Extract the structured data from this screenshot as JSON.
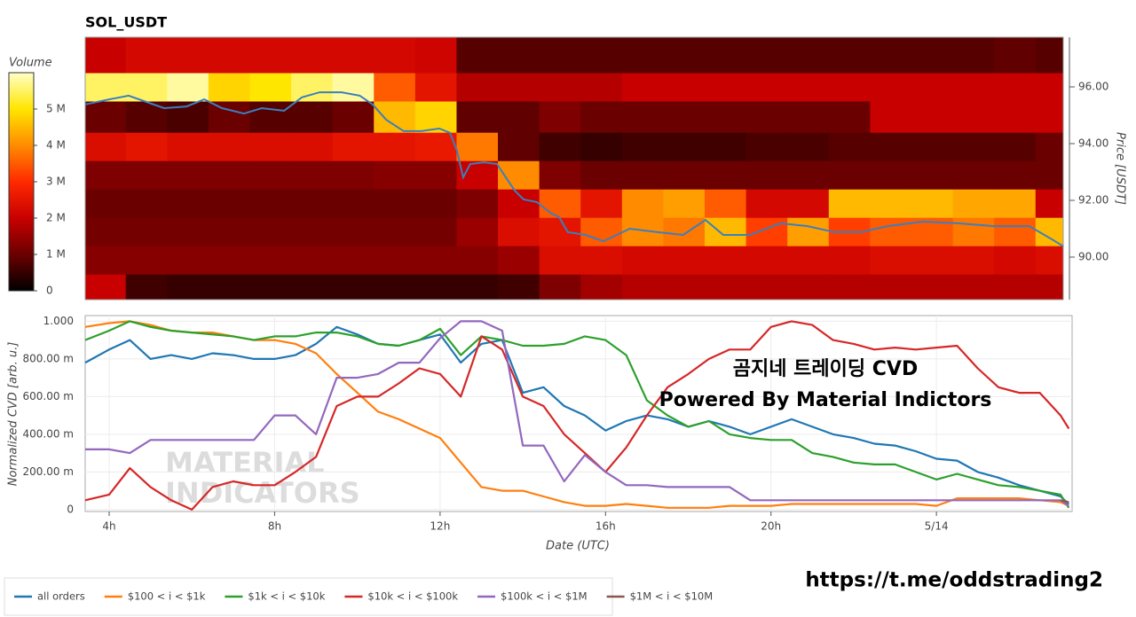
{
  "chart_data": [
    {
      "type": "heatmap",
      "title": "SOL_USDT",
      "ylabel": "Price [USDT]",
      "xlim": [
        3.42,
        27.07
      ],
      "ylim": [
        88.5,
        97.75
      ],
      "yticks": [
        {
          "value": 90,
          "label": "90.00"
        },
        {
          "value": 92,
          "label": "92.00"
        },
        {
          "value": 94,
          "label": "94.00"
        },
        {
          "value": 96,
          "label": "96.00"
        }
      ],
      "x_bins": [
        3.42,
        4.4,
        5.4,
        6.4,
        7.4,
        8.4,
        9.4,
        10.4,
        11.4,
        12.4,
        13.4,
        14.4,
        15.4,
        16.4,
        17.4,
        18.4,
        19.4,
        20.4,
        21.4,
        22.4,
        23.4,
        24.4,
        25.4,
        26.4,
        27.07
      ],
      "y_bins": [
        88.5,
        89.4,
        90.4,
        91.4,
        92.4,
        93.4,
        94.4,
        95.5,
        96.5,
        97.75
      ],
      "values": [
        [
          2000000.0,
          600000.0,
          500000.0,
          500000.0,
          500000.0,
          500000.0,
          500000.0,
          500000.0,
          500000.0,
          500000.0,
          600000.0,
          1200000.0,
          1600000.0,
          1800000.0,
          1800000.0,
          1800000.0,
          1800000.0,
          1800000.0,
          1800000.0,
          1800000.0,
          1800000.0,
          1800000.0,
          1800000.0,
          1800000.0
        ],
        [
          1300000.0,
          1300000.0,
          1300000.0,
          1300000.0,
          1300000.0,
          1300000.0,
          1300000.0,
          1300000.0,
          1300000.0,
          1300000.0,
          1500000.0,
          2300000.0,
          2300000.0,
          2200000.0,
          2200000.0,
          2200000.0,
          2200000.0,
          2200000.0,
          2200000.0,
          2300000.0,
          2300000.0,
          2300000.0,
          2200000.0,
          2300000.0
        ],
        [
          1100000.0,
          1100000.0,
          1100000.0,
          1100000.0,
          1100000.0,
          1100000.0,
          1100000.0,
          1100000.0,
          1100000.0,
          1500000.0,
          2300000.0,
          2500000.0,
          3500000.0,
          4000000.0,
          3800000.0,
          4500000.0,
          3200000.0,
          4200000.0,
          3200000.0,
          3500000.0,
          3500000.0,
          3800000.0,
          3500000.0,
          4500000.0
        ],
        [
          1000000.0,
          1000000.0,
          1000000.0,
          1000000.0,
          1000000.0,
          1000000.0,
          1000000.0,
          1000000.0,
          1000000.0,
          1200000.0,
          2000000.0,
          3500000.0,
          2500000.0,
          4000000.0,
          4200000.0,
          3500000.0,
          2200000.0,
          2200000.0,
          4500000.0,
          4500000.0,
          4500000.0,
          4300000.0,
          4300000.0,
          2000000.0
        ],
        [
          1200000.0,
          1200000.0,
          1200000.0,
          1200000.0,
          1200000.0,
          1200000.0,
          1200000.0,
          1300000.0,
          1300000.0,
          2000000.0,
          4000000.0,
          1200000.0,
          1000000.0,
          1000000.0,
          1000000.0,
          1000000.0,
          1000000.0,
          1000000.0,
          1000000.0,
          1000000.0,
          1000000.0,
          1000000.0,
          1000000.0,
          1000000.0
        ],
        [
          2300000.0,
          2500000.0,
          2300000.0,
          2300000.0,
          2300000.0,
          2300000.0,
          2500000.0,
          2500000.0,
          2600000.0,
          3800000.0,
          900000.0,
          600000.0,
          500000.0,
          600000.0,
          600000.0,
          600000.0,
          700000.0,
          700000.0,
          800000.0,
          800000.0,
          800000.0,
          800000.0,
          800000.0,
          1000000.0
        ],
        [
          1000000.0,
          800000.0,
          700000.0,
          1000000.0,
          800000.0,
          800000.0,
          1000000.0,
          4500000.0,
          4800000.0,
          900000.0,
          900000.0,
          1200000.0,
          1000000.0,
          1000000.0,
          1000000.0,
          1000000.0,
          1000000.0,
          1000000.0,
          1000000.0,
          2000000.0,
          2000000.0,
          2000000.0,
          2000000.0,
          2000000.0
        ],
        [
          5500000.0,
          5500000.0,
          5800000.0,
          4800000.0,
          5000000.0,
          5500000.0,
          5800000.0,
          3500000.0,
          2500000.0,
          1800000.0,
          1800000.0,
          1800000.0,
          1800000.0,
          2000000.0,
          2000000.0,
          2000000.0,
          2000000.0,
          2000000.0,
          2000000.0,
          2000000.0,
          2000000.0,
          2000000.0,
          2000000.0,
          2000000.0
        ],
        [
          2000000.0,
          2200000.0,
          2200000.0,
          2200000.0,
          2200000.0,
          2200000.0,
          2200000.0,
          2200000.0,
          2100000.0,
          800000.0,
          800000.0,
          800000.0,
          800000.0,
          800000.0,
          800000.0,
          800000.0,
          800000.0,
          800000.0,
          800000.0,
          800000.0,
          800000.0,
          800000.0,
          900000.0,
          800000.0
        ]
      ],
      "colorscale": [
        "#000000",
        "#6b0000",
        "#c80000",
        "#ff2a00",
        "#ff8c00",
        "#ffe600",
        "#ffffc8"
      ],
      "colorbar": {
        "label": "Volume",
        "lim": [
          0,
          6000000
        ],
        "ticks": [
          0,
          {
            "value": 1000000,
            "label": "1 M"
          },
          {
            "value": 2000000,
            "label": "2 M"
          },
          {
            "value": 3000000,
            "label": "3 M"
          },
          {
            "value": 4000000,
            "label": "4 M"
          },
          {
            "value": 5000000,
            "label": "5 M"
          }
        ]
      },
      "price": {
        "color": "#3a7fbf",
        "x": [
          3.42,
          4,
          4.47,
          4.9,
          5.33,
          5.87,
          6.3,
          6.73,
          7.26,
          7.69,
          8.23,
          8.66,
          9.09,
          9.62,
          10.06,
          10.37,
          10.7,
          11.12,
          11.55,
          11.98,
          12.24,
          12.41,
          12.56,
          12.73,
          13.06,
          13.38,
          13.59,
          13.81,
          14.02,
          14.34,
          14.67,
          14.88,
          15.09,
          15.52,
          15.95,
          16.27,
          16.59,
          17.24,
          17.88,
          18.42,
          18.85,
          19.49,
          20.24,
          20.89,
          21.53,
          22.18,
          22.82,
          23.68,
          24.54,
          25.39,
          26.25,
          26.79,
          27.07
        ],
        "values": [
          95.38,
          95.56,
          95.69,
          95.47,
          95.25,
          95.31,
          95.56,
          95.25,
          95.06,
          95.25,
          95.16,
          95.63,
          95.81,
          95.81,
          95.69,
          95.38,
          94.84,
          94.44,
          94.44,
          94.53,
          94.38,
          93.75,
          92.81,
          93.28,
          93.34,
          93.28,
          92.81,
          92.34,
          92.03,
          91.94,
          91.56,
          91.41,
          90.88,
          90.78,
          90.56,
          90.78,
          91,
          90.88,
          90.78,
          91.31,
          90.78,
          90.78,
          91.19,
          91.09,
          90.88,
          90.88,
          91.09,
          91.25,
          91.19,
          91.09,
          91.09,
          90.63,
          90.38
        ]
      }
    },
    {
      "type": "line",
      "xlabel": "Date (UTC)",
      "ylabel": "Normalized CVD [arb. u.]",
      "grid": true,
      "xlim": [
        3.42,
        27.28
      ],
      "ylim": [
        -0.01,
        1.03
      ],
      "xticks": [
        {
          "value": 4,
          "label": "4h"
        },
        {
          "value": 8,
          "label": "8h"
        },
        {
          "value": 12,
          "label": "12h"
        },
        {
          "value": 16,
          "label": "16h"
        },
        {
          "value": 20,
          "label": "20h"
        },
        {
          "value": 24,
          "label": "5/14"
        }
      ],
      "yticks": [
        0,
        {
          "value": 0.2,
          "label": "200.00 m"
        },
        {
          "value": 0.4,
          "label": "400.00 m"
        },
        {
          "value": 0.6,
          "label": "600.00 m"
        },
        {
          "value": 0.8,
          "label": "800.00 m"
        },
        {
          "value": 1,
          "label": "1.000"
        }
      ],
      "x": [
        3.42,
        4,
        4.5,
        5,
        5.5,
        6,
        6.5,
        7,
        7.5,
        8,
        8.5,
        9,
        9.5,
        10,
        10.5,
        11,
        11.5,
        12,
        12.5,
        13,
        13.5,
        14,
        14.5,
        15,
        15.5,
        16,
        16.5,
        17,
        17.5,
        18,
        18.5,
        19,
        19.5,
        20,
        20.5,
        21,
        21.5,
        22,
        22.5,
        23,
        23.5,
        24,
        24.5,
        25,
        25.5,
        26,
        26.5,
        27,
        27.2
      ],
      "series": [
        {
          "name": "all orders",
          "color": "#1f77b4",
          "values": [
            0.78,
            0.85,
            0.9,
            0.8,
            0.82,
            0.8,
            0.83,
            0.82,
            0.8,
            0.8,
            0.82,
            0.88,
            0.97,
            0.93,
            0.88,
            0.87,
            0.9,
            0.93,
            0.78,
            0.88,
            0.9,
            0.62,
            0.65,
            0.55,
            0.5,
            0.42,
            0.47,
            0.5,
            0.48,
            0.44,
            0.47,
            0.44,
            0.4,
            0.44,
            0.48,
            0.44,
            0.4,
            0.38,
            0.35,
            0.34,
            0.31,
            0.27,
            0.26,
            0.2,
            0.17,
            0.13,
            0.1,
            0.07,
            0.03
          ]
        },
        {
          "name": "$100 < i < $1k",
          "color": "#ff7f0e",
          "values": [
            0.97,
            0.99,
            1.0,
            0.98,
            0.95,
            0.94,
            0.94,
            0.92,
            0.9,
            0.9,
            0.88,
            0.83,
            0.72,
            0.62,
            0.52,
            0.48,
            0.43,
            0.38,
            0.25,
            0.12,
            0.1,
            0.1,
            0.07,
            0.04,
            0.02,
            0.02,
            0.03,
            0.02,
            0.01,
            0.01,
            0.01,
            0.02,
            0.02,
            0.02,
            0.03,
            0.03,
            0.03,
            0.03,
            0.03,
            0.03,
            0.03,
            0.02,
            0.06,
            0.06,
            0.06,
            0.06,
            0.05,
            0.04,
            0.02
          ]
        },
        {
          "name": "$1k < i < $10k",
          "color": "#2ca02c",
          "values": [
            0.9,
            0.95,
            1.0,
            0.97,
            0.95,
            0.94,
            0.93,
            0.92,
            0.9,
            0.92,
            0.92,
            0.94,
            0.94,
            0.92,
            0.88,
            0.87,
            0.9,
            0.96,
            0.82,
            0.92,
            0.9,
            0.87,
            0.87,
            0.88,
            0.92,
            0.9,
            0.82,
            0.58,
            0.5,
            0.44,
            0.47,
            0.4,
            0.38,
            0.37,
            0.37,
            0.3,
            0.28,
            0.25,
            0.24,
            0.24,
            0.2,
            0.16,
            0.19,
            0.16,
            0.13,
            0.12,
            0.1,
            0.08,
            0.01
          ]
        },
        {
          "name": "$10k < i < $100k",
          "color": "#d62728",
          "values": [
            0.05,
            0.08,
            0.22,
            0.12,
            0.05,
            0,
            0.12,
            0.15,
            0.13,
            0.13,
            0.2,
            0.28,
            0.55,
            0.6,
            0.6,
            0.67,
            0.75,
            0.72,
            0.6,
            0.92,
            0.85,
            0.6,
            0.55,
            0.4,
            0.3,
            0.2,
            0.33,
            0.5,
            0.65,
            0.72,
            0.8,
            0.85,
            0.85,
            0.97,
            1.0,
            0.98,
            0.9,
            0.88,
            0.85,
            0.86,
            0.85,
            0.86,
            0.87,
            0.75,
            0.65,
            0.62,
            0.62,
            0.5,
            0.43
          ]
        },
        {
          "name": "$100k < i < $1M",
          "color": "#9467bd",
          "values": [
            0.32,
            0.32,
            0.3,
            0.37,
            0.37,
            0.37,
            0.37,
            0.37,
            0.37,
            0.5,
            0.5,
            0.4,
            0.7,
            0.7,
            0.72,
            0.78,
            0.78,
            0.91,
            1.0,
            1.0,
            0.95,
            0.34,
            0.34,
            0.15,
            0.29,
            0.2,
            0.13,
            0.13,
            0.12,
            0.12,
            0.12,
            0.12,
            0.05,
            0.05,
            0.05,
            0.05,
            0.05,
            0.05,
            0.05,
            0.05,
            0.05,
            0.05,
            0.05,
            0.05,
            0.05,
            0.05,
            0.05,
            0.05,
            0.02
          ]
        },
        {
          "name": "$1M < i < $10M",
          "color": "#8c564b",
          "values": [
            null,
            null,
            null,
            null,
            null,
            null,
            null,
            null,
            null,
            null,
            null,
            null,
            null,
            null,
            null,
            null,
            null,
            null,
            null,
            null,
            null,
            null,
            null,
            null,
            null,
            null,
            null,
            null,
            null,
            null,
            null,
            null,
            null,
            null,
            null,
            null,
            null,
            null,
            null,
            null,
            null,
            null,
            null,
            null,
            null,
            null,
            null,
            0.05,
            0.04
          ]
        }
      ],
      "annotations": [
        "곰지네 트레이딩 CVD",
        "Powered By Material Indictors"
      ],
      "watermark": [
        "MATERIAL",
        "INDICATORS"
      ]
    }
  ],
  "footer": {
    "url": "https://t.me/oddstrading2"
  }
}
